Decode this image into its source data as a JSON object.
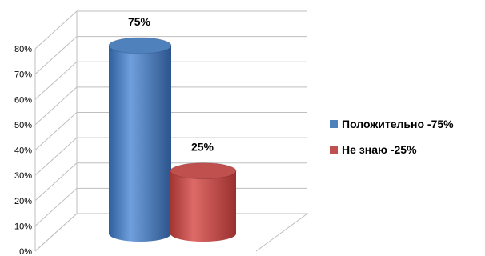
{
  "chart_data": {
    "type": "bar",
    "categories": [
      "Положительно -75%",
      "Не знаю -25%"
    ],
    "values": [
      75,
      25
    ],
    "value_labels": [
      "75%",
      "25%"
    ],
    "colors": [
      "#4f81bd",
      "#c0504d"
    ],
    "ylim": [
      0,
      80
    ],
    "yticks": [
      0,
      10,
      20,
      30,
      40,
      50,
      60,
      70,
      80
    ],
    "ytick_labels": [
      "0%",
      "10%",
      "20%",
      "30%",
      "40%",
      "50%",
      "60%",
      "70%",
      "80%"
    ],
    "grid": true,
    "legend_position": "right",
    "style": "3d-cylinder"
  }
}
